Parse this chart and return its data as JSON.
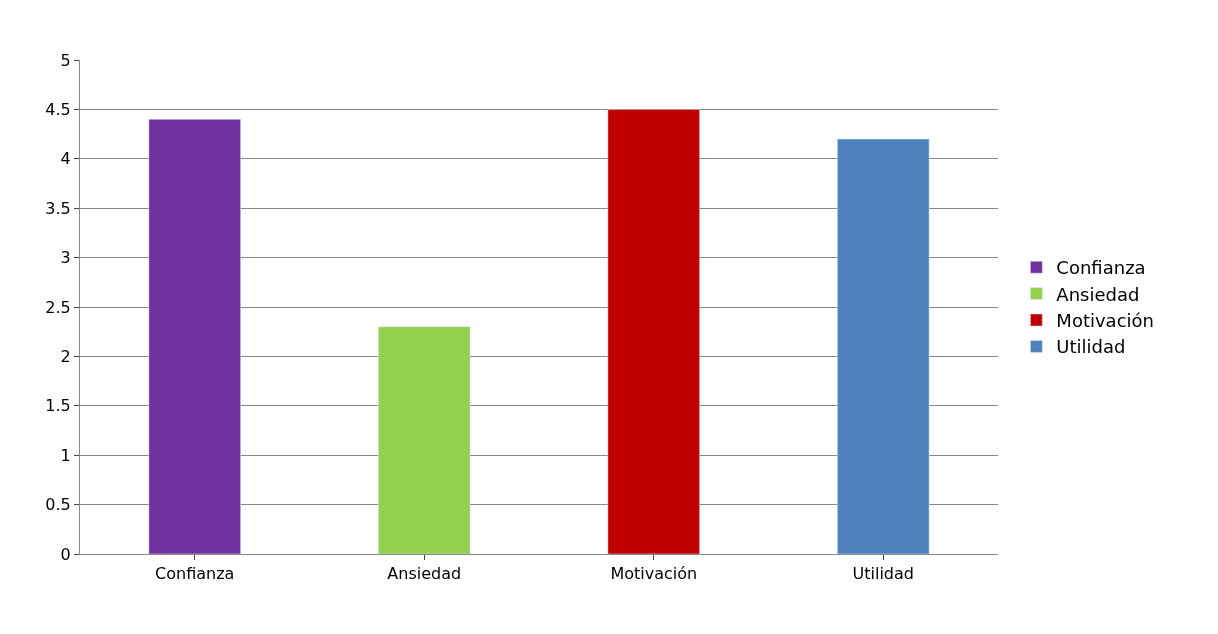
{
  "chart_data": {
    "type": "bar",
    "categories": [
      "Confianza",
      "Ansiedad",
      "Motivación",
      "Utilidad"
    ],
    "series": [
      {
        "name": "Confianza",
        "color": "#7030a0",
        "values": [
          4.4,
          null,
          null,
          null
        ]
      },
      {
        "name": "Ansiedad",
        "color": "#92d050",
        "values": [
          null,
          2.3,
          null,
          null
        ]
      },
      {
        "name": "Motivación",
        "color": "#c00000",
        "values": [
          null,
          null,
          4.5,
          null
        ]
      },
      {
        "name": "Utilidad",
        "color": "#4f81bd",
        "values": [
          null,
          null,
          null,
          4.2
        ]
      }
    ],
    "ylim": [
      0,
      5
    ],
    "yticks": [
      0,
      0.5,
      1,
      1.5,
      2,
      2.5,
      3,
      3.5,
      4,
      4.5,
      5
    ],
    "grid": "y",
    "legend": "right"
  }
}
